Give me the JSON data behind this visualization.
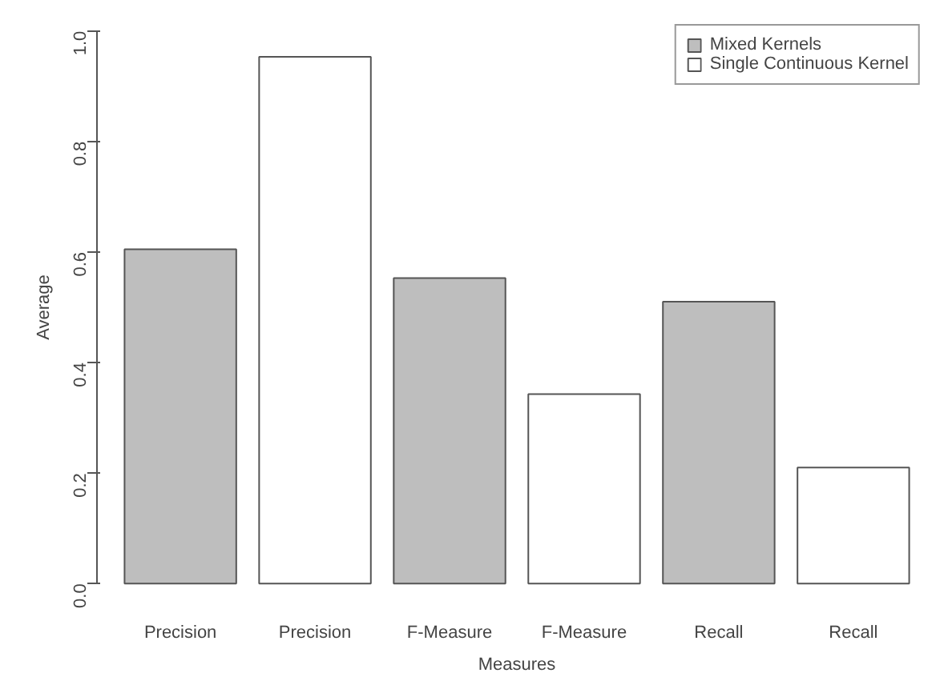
{
  "chart_data": {
    "type": "bar",
    "xlabel": "Measures",
    "ylabel": "Average",
    "categories": [
      "Precision",
      "Precision",
      "F-Measure",
      "F-Measure",
      "Recall",
      "Recall"
    ],
    "series": [
      {
        "name": "Mixed Kernels",
        "color": "#bebebe",
        "values": [
          0.605,
          null,
          0.553,
          null,
          0.51,
          null
        ]
      },
      {
        "name": "Single Continuous Kernel",
        "color": "#ffffff",
        "values": [
          null,
          0.953,
          null,
          0.343,
          null,
          0.21
        ]
      }
    ],
    "ylim": [
      0,
      1
    ],
    "yticks": [
      {
        "value": 0,
        "label": "0.0"
      },
      {
        "value": 0.2,
        "label": "0.2"
      },
      {
        "value": 0.4,
        "label": "0.4"
      },
      {
        "value": 0.6,
        "label": "0.6"
      },
      {
        "value": 0.8,
        "label": "0.8"
      },
      {
        "value": 1,
        "label": "1.0"
      }
    ],
    "grid": false,
    "legend": "top right"
  }
}
